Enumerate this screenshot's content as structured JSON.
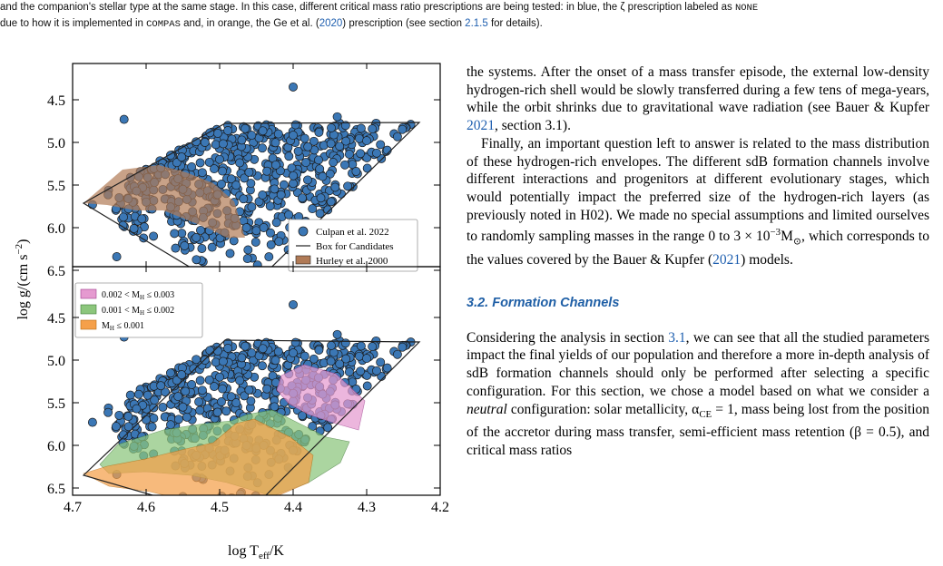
{
  "caption": {
    "line1_text": "and the companion's stellar type at the same stage. In this case, different critical mass ratio prescriptions are being tested: in blue, the ζ prescription labeled as ",
    "none_label": "NONE",
    "line2_a": "due to how it is implemented in ",
    "compas_label": "COMPAS",
    "line2_b": " and, in orange, the Ge et al. (",
    "year_link": "2020",
    "line2_c": ") prescription (see section ",
    "section_link": "2.1.5",
    "line2_d": " for details)."
  },
  "figure": {
    "ylabel": "log g/(cm s",
    "ylabel_sup": "−2",
    "ylabel_close": ")",
    "xlabel": "log T",
    "xlabel_sub": "eff",
    "xlabel_tail": "/K",
    "colors": {
      "points": "#3b77b5",
      "hurley": "#b07a56",
      "pink": "#e59ad0",
      "green": "#8cc67c",
      "orange": "#f5a04a"
    },
    "top_legend": [
      "Culpan et al. 2022",
      "Box for Candidates",
      "Hurley et al. 2000"
    ],
    "bottom_legend": [
      {
        "lo": "0.002 <",
        "m": "M",
        "sub": "H",
        "hi": "≤ 0.003"
      },
      {
        "lo": "0.001 <",
        "m": "M",
        "sub": "H",
        "hi": "≤ 0.002"
      },
      {
        "lo": "",
        "m": "M",
        "sub": "H",
        "hi": "≤ 0.001"
      }
    ]
  },
  "chart_data": [
    {
      "type": "scatter",
      "panel": "top",
      "xlim": [
        4.7,
        4.2
      ],
      "ylim": [
        4.3,
        6.8
      ],
      "yticks": [
        "4.5",
        "5.0",
        "5.5",
        "6.0",
        "6.5"
      ],
      "series": [
        {
          "name": "Culpan et al. 2022",
          "kind": "points"
        },
        {
          "name": "Box for Candidates",
          "kind": "line",
          "x": [
            4.68,
            4.49,
            4.22,
            4.44,
            4.68
          ],
          "y": [
            5.85,
            6.85,
            4.95,
            4.05,
            5.85
          ]
        },
        {
          "name": "Hurley et al. 2000",
          "kind": "area"
        }
      ],
      "sample_points": [
        {
          "x": 4.63,
          "y": 4.73
        },
        {
          "x": 4.4,
          "y": 4.35
        },
        {
          "x": 4.44,
          "y": 6.0
        },
        {
          "x": 4.4,
          "y": 6.06
        },
        {
          "x": 4.64,
          "y": 6.34
        },
        {
          "x": 4.55,
          "y": 6.6
        },
        {
          "x": 4.51,
          "y": 6.72
        },
        {
          "x": 4.43,
          "y": 6.2
        },
        {
          "x": 4.34,
          "y": 4.7
        },
        {
          "x": 4.3,
          "y": 4.98
        },
        {
          "x": 4.5,
          "y": 5.2
        },
        {
          "x": 4.55,
          "y": 5.55
        },
        {
          "x": 4.46,
          "y": 5.35
        },
        {
          "x": 4.38,
          "y": 5.05
        },
        {
          "x": 4.52,
          "y": 5.0
        },
        {
          "x": 4.6,
          "y": 5.7
        },
        {
          "x": 4.58,
          "y": 5.3
        },
        {
          "x": 4.42,
          "y": 4.9
        },
        {
          "x": 4.36,
          "y": 5.4
        },
        {
          "x": 4.49,
          "y": 5.8
        }
      ]
    },
    {
      "type": "scatter",
      "panel": "bottom",
      "xlim": [
        4.7,
        4.2
      ],
      "ylim": [
        4.3,
        6.8
      ],
      "xticks": [
        "4.7",
        "4.6",
        "4.5",
        "4.4",
        "4.3",
        "4.2"
      ],
      "yticks": [
        "4.5",
        "5.0",
        "5.5",
        "6.0",
        "6.5"
      ],
      "series": [
        {
          "name": "0.002 < MH ≤ 0.003",
          "kind": "area"
        },
        {
          "name": "0.001 < MH ≤ 0.002",
          "kind": "area"
        },
        {
          "name": "MH ≤ 0.001",
          "kind": "area"
        }
      ]
    }
  ],
  "body": {
    "p1": "the systems. After the onset of a mass transfer episode, the external low-density hydrogen-rich shell would be slowly transferred during a few tens of mega-years, while the orbit shrinks due to gravitational wave radiation (see Bauer & Kupfer ",
    "p1_link": "2021",
    "p1_tail": ", section 3.1).",
    "p2": "Finally, an important question left to answer is related to the mass distribution of these hydrogen-rich envelopes. The different sdB formation channels involve different interactions and progenitors at different evolutionary stages, which would potentially impact the preferred size of the hydrogen-rich layers (as previously noted in H02). We made no special assumptions and limited ourselves to randomly sampling masses in the range 0 to 3 × 10",
    "p2_sup": "−3",
    "p2_msun": "M",
    "p2_sun": "⊙",
    "p2_tail": ", which corresponds to the values covered by the Bauer & Kupfer (",
    "p2_link": "2021",
    "p2_end": ") models.",
    "heading": "3.2. Formation Channels",
    "p3": "Considering the analysis in section ",
    "p3_link": "3.1",
    "p3_tail": ", we can see that all the studied parameters impact the final yields of our population and therefore a more in-depth analysis of sdB formation channels should only be performed after selecting a specific configuration. For this section, we chose a model based on what we consider a ",
    "p3_em": "neutral",
    "p3_tail2": " configuration: solar metallicity, α",
    "p3_ce": "CE",
    "p3_tail3": " = 1, mass being lost from the position of the accretor during mass transfer, semi-efficient mass retention (β = 0.5), and critical mass ratios"
  }
}
